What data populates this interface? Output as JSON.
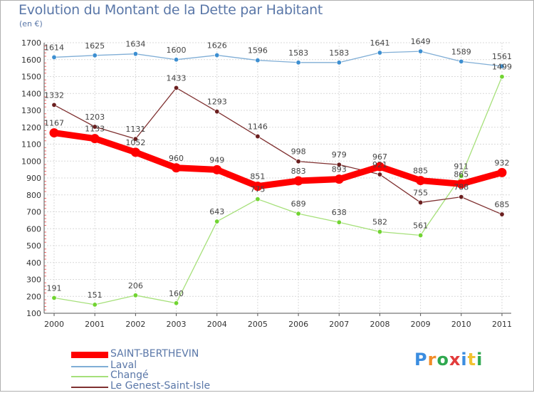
{
  "title": "Evolution du Montant de la Dette par Habitant",
  "subtitle": "(en €)",
  "chart_data": {
    "type": "line",
    "x": [
      "2000",
      "2001",
      "2002",
      "2003",
      "2004",
      "2005",
      "2006",
      "2007",
      "2008",
      "2009",
      "2010",
      "2011"
    ],
    "ylim": [
      100,
      1700
    ],
    "yticks": [
      100,
      200,
      300,
      400,
      500,
      600,
      700,
      800,
      900,
      1000,
      1100,
      1200,
      1300,
      1400,
      1500,
      1600,
      1700
    ],
    "grid": true,
    "legend_position": "bottom-left",
    "series": [
      {
        "name": "SAINT-BERTHEVIN",
        "color": "#ff0000",
        "marker": "#ff0000",
        "values": [
          1167,
          1133,
          1052,
          960,
          949,
          851,
          883,
          893,
          967,
          885,
          865,
          932
        ]
      },
      {
        "name": "Laval",
        "color": "#80aed6",
        "marker": "#3d8fd1",
        "values": [
          1614,
          1625,
          1634,
          1600,
          1626,
          1596,
          1583,
          1583,
          1641,
          1649,
          1589,
          1561
        ]
      },
      {
        "name": "Changé",
        "color": "#a6e07a",
        "marker": "#71d431",
        "values": [
          191,
          151,
          206,
          160,
          643,
          775,
          689,
          638,
          582,
          561,
          911,
          1499
        ]
      },
      {
        "name": "Le Genest-Saint-Isle",
        "color": "#7f3030",
        "marker": "#6b1f1f",
        "values": [
          1332,
          1203,
          1131,
          1433,
          1293,
          1146,
          998,
          979,
          921,
          755,
          788,
          685
        ]
      }
    ]
  },
  "logo": {
    "text": [
      "P",
      "r",
      "o",
      "x",
      "i",
      "t",
      "i"
    ],
    "colors": [
      "#3b8de0",
      "#f28c28",
      "#2fa84f",
      "#e23b3b",
      "#3b8de0",
      "#f2c230",
      "#2fa84f"
    ]
  }
}
